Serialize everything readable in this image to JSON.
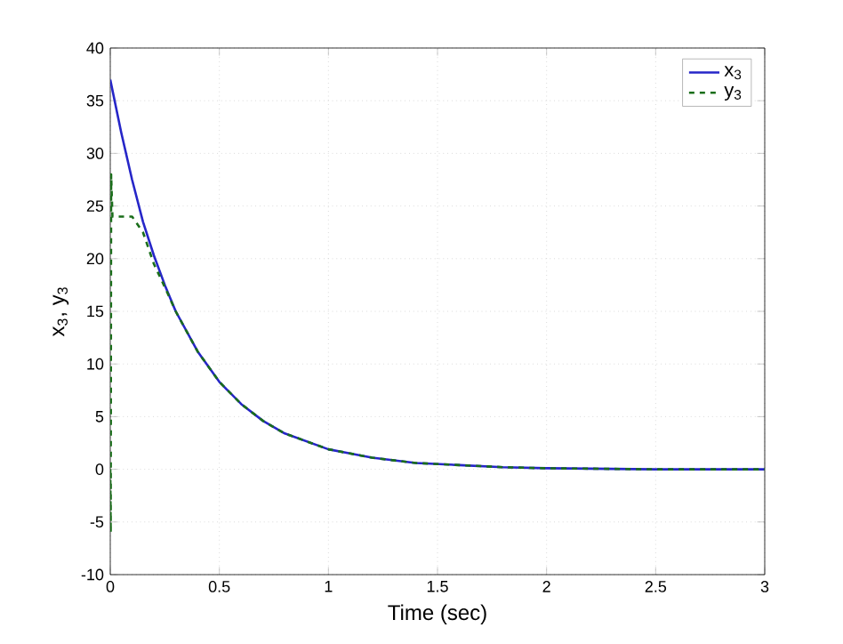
{
  "chart_data": {
    "type": "line",
    "xlabel": "Time (sec)",
    "ylabel": "x$_{3}$, y$_{3}$",
    "xlim": [
      0,
      3
    ],
    "ylim": [
      -10,
      40
    ],
    "xticks": [
      0,
      0.5,
      1,
      1.5,
      2,
      2.5,
      3
    ],
    "yticks": [
      -10,
      -5,
      0,
      5,
      10,
      15,
      20,
      25,
      30,
      35,
      40
    ],
    "grid": true,
    "legend": "top right",
    "marker": "none",
    "series": [
      {
        "name": "x$_{3}$",
        "color": "#2626c8",
        "line_style": "solid",
        "x": [
          0,
          0.05,
          0.1,
          0.15,
          0.2,
          0.25,
          0.3,
          0.4,
          0.5,
          0.6,
          0.7,
          0.8,
          1,
          1.2,
          1.4,
          1.6,
          1.8,
          2,
          2.5,
          3
        ],
        "values": [
          37,
          32,
          27.5,
          23.5,
          20.3,
          17.5,
          15,
          11.2,
          8.3,
          6.2,
          4.6,
          3.4,
          1.9,
          1.1,
          0.6,
          0.4,
          0.2,
          0.1,
          0,
          0
        ]
      },
      {
        "name": "y$_{3}$",
        "color": "#1a6e1a",
        "line_style": "dashed",
        "x": [
          0,
          0.002,
          0.004,
          0.01,
          0.05,
          0.1,
          0.15,
          0.2,
          0.25,
          0.3,
          0.4,
          0.5,
          0.6,
          0.7,
          0.8,
          1,
          1.2,
          1.4,
          1.6,
          1.8,
          2,
          2.5,
          3
        ],
        "values": [
          0,
          -6,
          28,
          24,
          24,
          24,
          22.5,
          19.5,
          17.3,
          15,
          11.2,
          8.3,
          6.2,
          4.6,
          3.4,
          1.9,
          1.1,
          0.6,
          0.4,
          0.2,
          0.1,
          0,
          0
        ]
      }
    ]
  }
}
